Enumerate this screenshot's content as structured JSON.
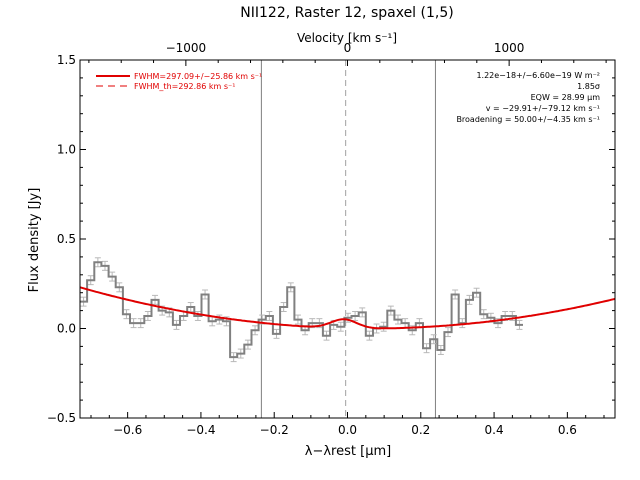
{
  "chart_data": {
    "type": "line",
    "title": "NII122, Raster 12, spaxel (1,5)",
    "top_axis_label": "Velocity [km s⁻¹]",
    "xlabel": "λ−λrest [μm]",
    "ylabel": "Flux density [Jy]",
    "xlim": [
      -0.73,
      0.73
    ],
    "ylim": [
      -0.5,
      1.5
    ],
    "velocity_lim": [
      -1655,
      1655
    ],
    "x_ticks": [
      -0.6,
      -0.4,
      -0.2,
      0.0,
      0.2,
      0.4,
      0.6
    ],
    "x_tick_labels": [
      "−0.6",
      "−0.4",
      "−0.2",
      "0.0",
      "0.2",
      "0.4",
      "0.6"
    ],
    "y_ticks": [
      -0.5,
      0.0,
      0.5,
      1.0,
      1.5
    ],
    "y_tick_labels": [
      "−0.5",
      "0.0",
      "0.5",
      "1.0",
      "1.5"
    ],
    "velocity_ticks": [
      -1000,
      0,
      1000
    ],
    "velocity_tick_labels": [
      "−1000",
      "0",
      "1000"
    ],
    "grid": false,
    "legend_placement": "top-left",
    "legend": [
      {
        "label": "FWHM=297.09+/−25.86 km s⁻¹",
        "style": "solid",
        "color": "#e00000"
      },
      {
        "label": "FWHM_th=292.86 km s⁻¹",
        "style": "dashed",
        "color": "#e00000"
      }
    ],
    "annotations": [
      "1.22e−18+/−6.60e−19 W m⁻²",
      "1.85σ",
      "EQW = 28.99 μm",
      "v = −29.91+/−79.12 km s⁻¹",
      "Broadening = 50.00+/−4.35 km s⁻¹"
    ],
    "vertical_lines": [
      -0.235,
      0.24
    ],
    "center_dashed_line": -0.005,
    "spectrum": {
      "name": "",
      "bin_width": 0.0195,
      "x_start": -0.73,
      "values": [
        0.15,
        0.27,
        0.37,
        0.35,
        0.29,
        0.23,
        0.08,
        0.03,
        0.03,
        0.07,
        0.16,
        0.1,
        0.09,
        0.02,
        0.07,
        0.12,
        0.07,
        0.19,
        0.04,
        0.05,
        0.04,
        -0.16,
        -0.14,
        -0.09,
        -0.01,
        0.05,
        0.07,
        -0.03,
        0.12,
        0.23,
        0.05,
        -0.01,
        0.03,
        0.03,
        -0.04,
        0.02,
        0.01,
        0.06,
        0.07,
        0.09,
        -0.04,
        0.0,
        0.01,
        0.1,
        0.05,
        0.03,
        -0.01,
        0.03,
        -0.11,
        -0.06,
        -0.12,
        -0.02,
        0.19,
        0.03,
        0.16,
        0.2,
        0.08,
        0.06,
        0.03,
        0.07,
        0.07,
        0.02
      ]
    },
    "fit_curve": {
      "color": "#e00000",
      "baseline": {
        "center": 0.06,
        "scale": 0.45,
        "amplitude": 0.23
      },
      "gaussian": {
        "center": -0.01,
        "sigma": 0.035,
        "peak": 0.05
      }
    },
    "colors": {
      "data": "#808080",
      "fit": "#e00000",
      "error": "#b8b8b8",
      "frame": "#000000",
      "reference_line": "#808080"
    }
  }
}
